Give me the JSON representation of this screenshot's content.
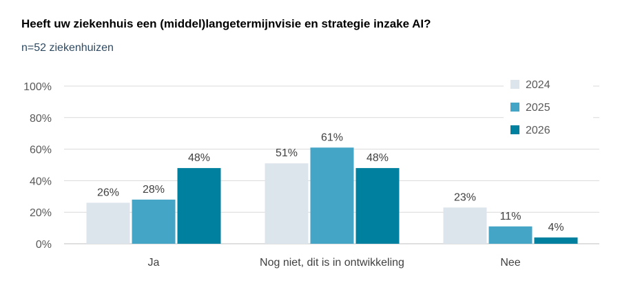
{
  "chart_data": {
    "type": "bar",
    "title": "Heeft uw ziekenhuis een (middel)langetermijnvisie en strategie inzake AI?",
    "subtitle": "n=52 ziekenhuizen",
    "categories": [
      "Ja",
      "Nog niet, dit is in ontwikkeling",
      "Nee"
    ],
    "series": [
      {
        "name": "2024",
        "values": [
          26,
          51,
          23
        ],
        "labels": [
          "26%",
          "51%",
          "23%"
        ],
        "color": "#dde5ec"
      },
      {
        "name": "2025",
        "values": [
          28,
          61,
          11
        ],
        "labels": [
          "28%",
          "61%",
          "11%"
        ],
        "color": "#44a5c7"
      },
      {
        "name": "2026",
        "values": [
          48,
          48,
          4
        ],
        "labels": [
          "48%",
          "48%",
          "4%"
        ],
        "color": "#00809f"
      }
    ],
    "yticks": [
      "0%",
      "20%",
      "40%",
      "60%",
      "80%",
      "100%"
    ],
    "ylim": [
      0,
      100
    ],
    "grid": true,
    "legend": "top-right"
  }
}
